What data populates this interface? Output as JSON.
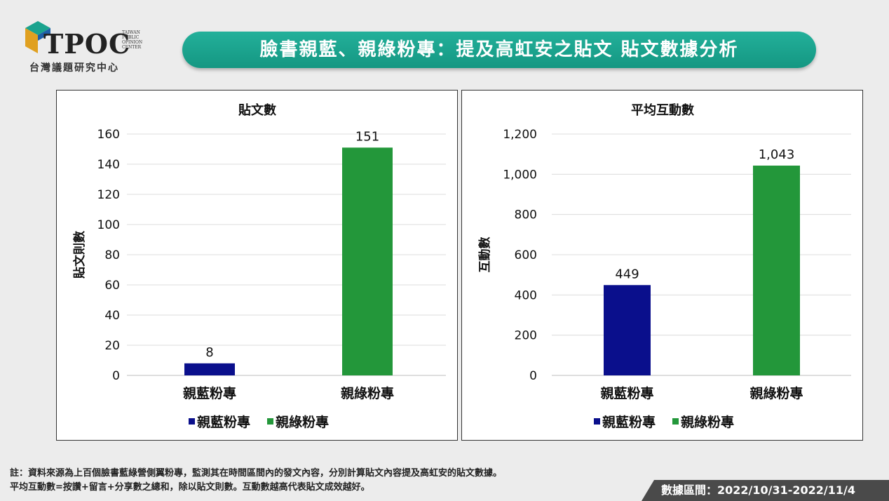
{
  "logo": {
    "name": "TPOC",
    "subtitle": "台灣議題研究中心",
    "small_text": [
      "TAIWAN",
      "PUBLIC",
      "OPINION",
      "CENTER"
    ]
  },
  "banner": {
    "title": "臉書親藍、親綠粉專：提及高虹安之貼文 貼文數據分析"
  },
  "colors": {
    "blue": "#0a0f8c",
    "green": "#23973a",
    "banner": "#1aa38e"
  },
  "chart_data": [
    {
      "type": "bar",
      "title": "貼文數",
      "ylabel": "貼文則數",
      "categories": [
        "親藍粉專",
        "親綠粉專"
      ],
      "values": [
        8,
        151
      ],
      "ylim": [
        0,
        160
      ],
      "yticks": [
        0,
        20,
        40,
        60,
        80,
        100,
        120,
        140,
        160
      ],
      "ytick_labels": [
        "0",
        "20",
        "40",
        "60",
        "80",
        "100",
        "120",
        "140",
        "160"
      ],
      "data_labels": [
        "8",
        "151"
      ],
      "legend": [
        "親藍粉專",
        "親綠粉專"
      ],
      "legend_position": "bottom",
      "grid": true
    },
    {
      "type": "bar",
      "title": "平均互動數",
      "ylabel": "互動數",
      "categories": [
        "親藍粉專",
        "親綠粉專"
      ],
      "values": [
        449,
        1043
      ],
      "ylim": [
        0,
        1200
      ],
      "yticks": [
        0,
        200,
        400,
        600,
        800,
        1000,
        1200
      ],
      "ytick_labels": [
        "0",
        "200",
        "400",
        "600",
        "800",
        "1,000",
        "1,200"
      ],
      "data_labels": [
        "449",
        "1,043"
      ],
      "legend": [
        "親藍粉專",
        "親綠粉專"
      ],
      "legend_position": "bottom",
      "grid": true
    }
  ],
  "footer": {
    "notes": [
      "註：資料來源為上百個臉書藍綠營側翼粉專，監測其在時間區間內的發文內容，分別計算貼文內容提及高虹安的貼文數據。",
      "平均互動數=按讚+留言+分享數之總和，除以貼文則數。互動數越高代表貼文成效越好。"
    ],
    "date_range": "數據區間：2022/10/31-2022/11/4"
  }
}
